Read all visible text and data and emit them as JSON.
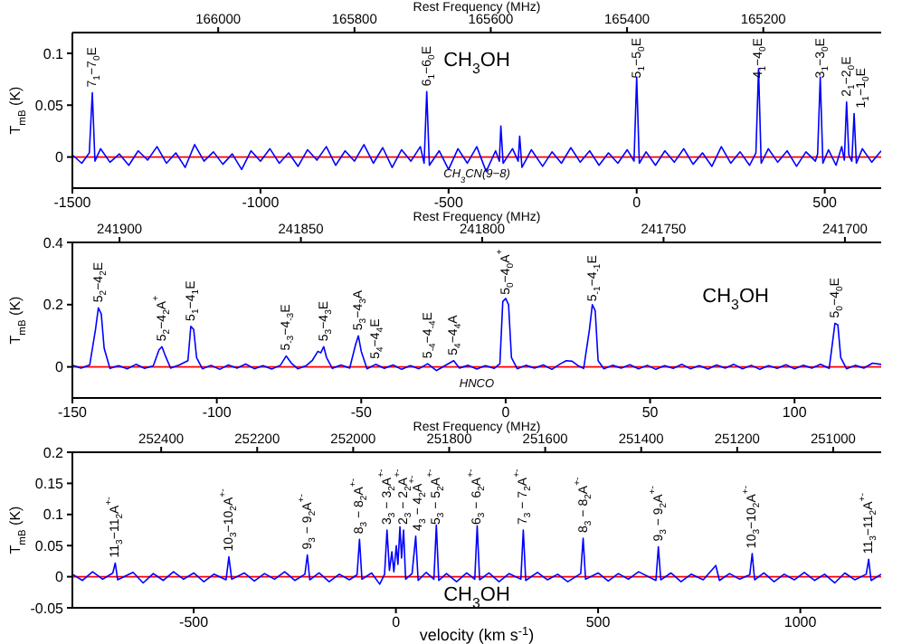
{
  "chart_data": [
    {
      "type": "line",
      "x2label": "Rest Frequency (MHz)",
      "ylabel": "T$_{mB}$ (K)",
      "xlim": [
        -1500,
        650
      ],
      "xticks": [
        -1500,
        -1000,
        -500,
        0,
        500
      ],
      "x2lim": [
        166214,
        165027
      ],
      "x2ticks": [
        166000,
        165800,
        165600,
        165400,
        165200
      ],
      "ylim": [
        -0.03,
        0.12
      ],
      "yticks": [
        0,
        0.05,
        0.1
      ],
      "legend": "top",
      "ref_lines": [
        {
          "axis": "y",
          "value": 0,
          "color": "#ff0000"
        }
      ],
      "annotations": [
        {
          "text": "7$_{1}$−7$_{0}$E",
          "x": -1447,
          "y": 0.062
        },
        {
          "text": "6$_{1}$−6$_{0}$E",
          "x": -558,
          "y": 0.063
        },
        {
          "text": "5$_{1}$−5$_{0}$E",
          "x": 0,
          "y": 0.077
        },
        {
          "text": "4$_{1}$−4$_{0}$E",
          "x": 324,
          "y": 0.085
        },
        {
          "text": "3$_{1}$−3$_{0}$E",
          "x": 488,
          "y": 0.077
        },
        {
          "text": "2$_{1}$−2$_{0}$E",
          "x": 558,
          "y": 0.053
        },
        {
          "text": "1$_{1}$−1$_{0}$E",
          "x": 578,
          "y": 0.042
        },
        "CH$_{3}$CN(9−8)"
      ],
      "series": [
        {
          "name": "CH$_{3}$OH",
          "color": "#0000ff",
          "x": [
            -1500,
            -1475,
            -1455,
            -1447,
            -1440,
            -1425,
            -1400,
            -1375,
            -1350,
            -1325,
            -1300,
            -1275,
            -1250,
            -1225,
            -1200,
            -1175,
            -1150,
            -1125,
            -1100,
            -1075,
            -1050,
            -1025,
            -1000,
            -975,
            -950,
            -925,
            -900,
            -875,
            -850,
            -825,
            -800,
            -775,
            -750,
            -725,
            -700,
            -675,
            -650,
            -625,
            -600,
            -575,
            -565,
            -558,
            -551,
            -525,
            -500,
            -475,
            -450,
            -425,
            -400,
            -375,
            -365,
            -361,
            -355,
            -330,
            -315,
            -311,
            -305,
            -280,
            -250,
            -225,
            -200,
            -175,
            -150,
            -125,
            -100,
            -75,
            -50,
            -25,
            -7,
            0,
            7,
            25,
            50,
            75,
            100,
            125,
            150,
            175,
            200,
            225,
            250,
            275,
            300,
            317,
            324,
            331,
            350,
            375,
            400,
            425,
            450,
            475,
            481,
            488,
            495,
            510,
            530,
            545,
            552,
            558,
            564,
            572,
            578,
            584,
            600,
            625,
            650
          ],
          "values": [
            0.002,
            -0.006,
            0.004,
            0.062,
            -0.004,
            0.008,
            -0.005,
            0.003,
            -0.008,
            0.006,
            -0.003,
            0.01,
            -0.006,
            0.004,
            -0.01,
            0.012,
            -0.004,
            0.005,
            -0.007,
            0.003,
            -0.012,
            0.006,
            -0.004,
            0.008,
            -0.006,
            0.004,
            -0.009,
            0.007,
            -0.003,
            0.01,
            -0.008,
            0.006,
            -0.004,
            0.012,
            -0.006,
            0.009,
            -0.01,
            0.007,
            -0.004,
            0.01,
            -0.006,
            0.063,
            -0.008,
            0.006,
            -0.012,
            0.008,
            -0.006,
            0.01,
            -0.014,
            0.006,
            -0.004,
            0.03,
            -0.006,
            0.008,
            -0.004,
            0.02,
            -0.01,
            0.007,
            -0.009,
            0.005,
            -0.006,
            0.009,
            -0.005,
            0.006,
            -0.008,
            0.004,
            -0.006,
            0.007,
            -0.004,
            0.077,
            -0.006,
            0.005,
            -0.008,
            0.006,
            -0.005,
            0.008,
            -0.007,
            0.004,
            -0.009,
            0.01,
            -0.006,
            0.005,
            -0.008,
            0.004,
            0.085,
            -0.006,
            0.008,
            -0.005,
            0.006,
            -0.009,
            0.005,
            -0.004,
            0.003,
            0.077,
            -0.006,
            0.007,
            -0.008,
            0.01,
            -0.003,
            0.053,
            0.002,
            -0.004,
            0.042,
            -0.006,
            0.008,
            -0.005,
            0.006
          ]
        }
      ]
    },
    {
      "type": "line",
      "x2label": "Rest Frequency (MHz)",
      "ylabel": "T$_{mB}$ (K)",
      "xlim": [
        -150,
        130
      ],
      "xticks": [
        -150,
        -100,
        -50,
        0,
        50,
        100
      ],
      "x2lim": [
        241913,
        241690
      ],
      "x2ticks": [
        241900,
        241850,
        241800,
        241750,
        241700
      ],
      "ylim": [
        -0.1,
        0.4
      ],
      "yticks": [
        0,
        0.2,
        0.4
      ],
      "legend": "top right",
      "ref_lines": [
        {
          "axis": "y",
          "value": 0,
          "color": "#ff0000"
        }
      ],
      "annotations": [
        {
          "text": "5$_{2}$−4$_{2}$E",
          "x": -141,
          "y": 0.19
        },
        {
          "text": "5$_{2}$−4$_{2}$A$^{+}$",
          "x": -119,
          "y": 0.065
        },
        {
          "text": "5$_{1}$−4$_{1}$E",
          "x": -109,
          "y": 0.13
        },
        {
          "text": "5$_{-3}$−4$_{-3}$E",
          "x": -76,
          "y": 0.035
        },
        {
          "text": "5$_{3}$−4$_{3}$E",
          "x": -63,
          "y": 0.065
        },
        {
          "text": "5$_{3}$−4$_{3}$A",
          "x": -51,
          "y": 0.1
        },
        {
          "text": "5$_{4}$−4$_{4}$E",
          "x": -45,
          "y": 0.008
        },
        {
          "text": "5$_{-4}$−4$_{-4}$E",
          "x": -27,
          "y": 0.01
        },
        {
          "text": "5$_{4}$−4$_{4}$A",
          "x": -18,
          "y": 0.02
        },
        {
          "text": "5$_{0}$−4$_{0}$A$^{+}$",
          "x": 0,
          "y": 0.22
        },
        {
          "text": "5$_{-1}$−4$_{-1}$E",
          "x": 30,
          "y": 0.2
        },
        {
          "text": "5$_{0}$−4$_{0}$E",
          "x": 114,
          "y": 0.14
        },
        "HNCO"
      ],
      "series": [
        {
          "name": "CH$_{3}$OH",
          "color": "#0000ff",
          "x": [
            -150,
            -147,
            -144,
            -142,
            -141,
            -140,
            -139,
            -137,
            -134,
            -131,
            -128,
            -125,
            -122,
            -120,
            -119,
            -118,
            -116,
            -113,
            -110,
            -109,
            -108,
            -107,
            -105,
            -102,
            -99,
            -96,
            -93,
            -90,
            -87,
            -84,
            -81,
            -78,
            -76,
            -74,
            -72,
            -69,
            -67,
            -65,
            -64,
            -63,
            -62,
            -60,
            -57,
            -54,
            -52,
            -51,
            -50,
            -48,
            -45,
            -42,
            -39,
            -36,
            -33,
            -30,
            -27,
            -24,
            -21,
            -18,
            -16,
            -13,
            -10,
            -7,
            -4,
            -2,
            -1,
            0,
            1,
            2,
            4,
            7,
            10,
            13,
            16,
            19,
            21,
            23,
            25,
            27,
            29,
            30,
            31,
            32,
            34,
            37,
            40,
            43,
            46,
            49,
            52,
            55,
            58,
            61,
            64,
            67,
            70,
            73,
            76,
            79,
            82,
            85,
            88,
            91,
            94,
            97,
            100,
            103,
            106,
            109,
            112,
            114,
            115,
            116,
            118,
            121,
            124,
            127,
            130
          ],
          "values": [
            0.005,
            -0.004,
            0.006,
            0.12,
            0.19,
            0.17,
            0.06,
            -0.005,
            0.004,
            -0.006,
            0.008,
            -0.005,
            0.003,
            0.055,
            0.065,
            0.04,
            -0.004,
            0.006,
            0.02,
            0.13,
            0.12,
            0.03,
            -0.006,
            0.005,
            -0.008,
            0.006,
            -0.004,
            0.009,
            -0.006,
            0.004,
            -0.007,
            0.005,
            0.035,
            0.01,
            -0.006,
            0.004,
            0.02,
            0.05,
            0.045,
            0.065,
            0.03,
            -0.005,
            0.006,
            -0.004,
            0.07,
            0.1,
            0.05,
            -0.006,
            0.008,
            -0.005,
            0.006,
            -0.008,
            0.004,
            -0.006,
            0.01,
            -0.012,
            0.004,
            0.02,
            -0.004,
            0.005,
            -0.007,
            0.004,
            -0.005,
            0.01,
            0.21,
            0.22,
            0.2,
            0.03,
            -0.006,
            0.005,
            -0.004,
            0.006,
            -0.008,
            0.01,
            0.02,
            0.018,
            0.004,
            -0.005,
            0.12,
            0.2,
            0.18,
            0.02,
            -0.006,
            0.005,
            -0.004,
            0.007,
            -0.006,
            0.005,
            -0.008,
            0.004,
            -0.005,
            0.008,
            -0.006,
            0.004,
            -0.007,
            0.006,
            -0.004,
            0.008,
            -0.006,
            0.005,
            -0.008,
            0.004,
            -0.005,
            0.007,
            -0.006,
            0.005,
            -0.004,
            0.008,
            -0.005,
            0.14,
            0.135,
            0.03,
            -0.006,
            0.005,
            -0.004,
            0.012,
            0.008
          ]
        }
      ]
    },
    {
      "type": "line",
      "x2label": "Rest Frequency (MHz)",
      "xlabel": "velocity (km s$^{-1}$)",
      "ylabel": "T$_{mB}$ (K)",
      "xlim": [
        -800,
        1200
      ],
      "xticks": [
        -500,
        0,
        500,
        1000
      ],
      "x2lim": [
        252585,
        250900
      ],
      "x2ticks": [
        252400,
        252200,
        252000,
        251800,
        251600,
        251400,
        251200,
        251000
      ],
      "ylim": [
        -0.05,
        0.2
      ],
      "yticks": [
        -0.05,
        0,
        0.05,
        0.1,
        0.15,
        0.2
      ],
      "legend": "bottom",
      "ref_lines": [
        {
          "axis": "y",
          "value": 0,
          "color": "#ff0000"
        }
      ],
      "annotations": [
        {
          "text": "11$_{3}$−11$_{2}$A$^{+-}$",
          "x": -694,
          "y": 0.022
        },
        {
          "text": "10$_{3}$−10$_{2}$A$^{+-}$",
          "x": -413,
          "y": 0.032
        },
        {
          "text": "9$_{3}$ − 9$_{2}$A$^{+-}$",
          "x": -219,
          "y": 0.035
        },
        {
          "text": "8$_{3}$ − 8$_{2}$A$^{+-}$",
          "x": -90,
          "y": 0.06
        },
        {
          "text": "3$_{3}$ − 3$_{2}$A$^{+-}$",
          "x": -22,
          "y": 0.075
        },
        {
          "text": "2$_{3}$ − 2$_{2}$A$^{+-}$",
          "x": 19,
          "y": 0.075
        },
        {
          "text": "4$_{3}$ − 4$_{2}$A$^{+-}$",
          "x": 49,
          "y": 0.065
        },
        {
          "text": "5$_{3}$ − 5$_{2}$A$^{+-}$",
          "x": 100,
          "y": 0.083
        },
        {
          "text": "6$_{3}$ − 6$_{2}$A$^{+-}$",
          "x": 201,
          "y": 0.082
        },
        {
          "text": "7$_{3}$ − 7$_{2}$A$^{+-}$",
          "x": 315,
          "y": 0.075
        },
        {
          "text": "8$_{3}$ − 8$_{2}$A$^{+-}$",
          "x": 463,
          "y": 0.062
        },
        {
          "text": "9$_{3}$ − 9$_{2}$A$^{+-}$",
          "x": 649,
          "y": 0.048
        },
        {
          "text": "10$_{3}$−10$_{2}$A$^{+-}$",
          "x": 881,
          "y": 0.037
        },
        {
          "text": "11$_{3}$−11$_{2}$A$^{+-}$",
          "x": 1169,
          "y": 0.028
        }
      ],
      "series": [
        {
          "name": "CH$_{3}$OH",
          "color": "#0000ff",
          "x": [
            -800,
            -775,
            -750,
            -725,
            -700,
            -694,
            -688,
            -650,
            -625,
            -600,
            -575,
            -550,
            -525,
            -500,
            -475,
            -450,
            -420,
            -413,
            -406,
            -375,
            -350,
            -325,
            -300,
            -275,
            -250,
            -225,
            -219,
            -213,
            -190,
            -165,
            -140,
            -115,
            -96,
            -90,
            -84,
            -60,
            -40,
            -28,
            -22,
            -16,
            -10,
            -5,
            1,
            5,
            10,
            14,
            19,
            24,
            40,
            49,
            55,
            75,
            94,
            100,
            106,
            125,
            150,
            175,
            195,
            201,
            207,
            230,
            255,
            280,
            309,
            315,
            321,
            350,
            375,
            400,
            425,
            457,
            463,
            469,
            500,
            525,
            550,
            575,
            600,
            643,
            649,
            655,
            680,
            705,
            730,
            760,
            791,
            800,
            825,
            850,
            875,
            881,
            887,
            910,
            935,
            960,
            985,
            1010,
            1035,
            1060,
            1085,
            1110,
            1135,
            1163,
            1169,
            1175,
            1200
          ],
          "values": [
            0.004,
            -0.006,
            0.008,
            -0.004,
            0.006,
            0.022,
            -0.005,
            0.007,
            -0.01,
            0.005,
            -0.006,
            0.008,
            -0.004,
            0.006,
            -0.008,
            0.004,
            -0.005,
            0.032,
            -0.004,
            0.006,
            -0.007,
            0.005,
            -0.004,
            0.008,
            -0.006,
            0.004,
            0.035,
            -0.005,
            0.006,
            -0.008,
            0.004,
            -0.005,
            0.003,
            0.06,
            -0.004,
            0.006,
            -0.012,
            0.004,
            0.075,
            0.01,
            0.04,
            0.008,
            0.05,
            0.02,
            0.08,
            0.03,
            0.075,
            -0.004,
            0.005,
            0.065,
            -0.006,
            0.007,
            -0.004,
            0.083,
            -0.006,
            0.005,
            -0.008,
            0.006,
            -0.004,
            0.082,
            -0.005,
            0.006,
            -0.008,
            0.005,
            -0.004,
            0.075,
            -0.006,
            0.007,
            -0.005,
            0.004,
            -0.008,
            0.005,
            0.062,
            -0.004,
            0.006,
            -0.007,
            0.005,
            -0.004,
            0.008,
            -0.006,
            0.048,
            -0.005,
            0.006,
            -0.008,
            0.004,
            -0.005,
            0.018,
            -0.006,
            0.005,
            -0.004,
            0.003,
            0.037,
            -0.005,
            0.006,
            -0.008,
            0.004,
            -0.005,
            0.007,
            -0.006,
            0.004,
            -0.01,
            0.006,
            -0.005,
            0.004,
            0.028,
            -0.006,
            0.004
          ]
        }
      ]
    }
  ]
}
